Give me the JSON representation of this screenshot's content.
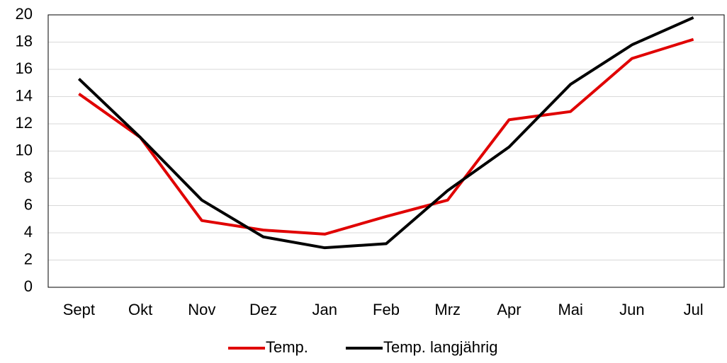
{
  "chart_data": {
    "type": "line",
    "categories": [
      "Sept",
      "Okt",
      "Nov",
      "Dez",
      "Jan",
      "Feb",
      "Mrz",
      "Apr",
      "Mai",
      "Jun",
      "Jul"
    ],
    "series": [
      {
        "name": "Temp.",
        "color": "#e00000",
        "values": [
          14.2,
          11.0,
          4.9,
          4.2,
          3.9,
          5.2,
          6.4,
          12.3,
          12.9,
          16.8,
          18.2
        ]
      },
      {
        "name": "Temp. langjährig",
        "color": "#000000",
        "values": [
          15.3,
          11.0,
          6.4,
          3.7,
          2.9,
          3.2,
          7.1,
          10.3,
          14.9,
          17.8,
          19.8
        ]
      }
    ],
    "ylim": [
      0,
      20
    ],
    "yticks": [
      0,
      2,
      4,
      6,
      8,
      10,
      12,
      14,
      16,
      18,
      20
    ],
    "grid": true,
    "legend": "bottom"
  }
}
